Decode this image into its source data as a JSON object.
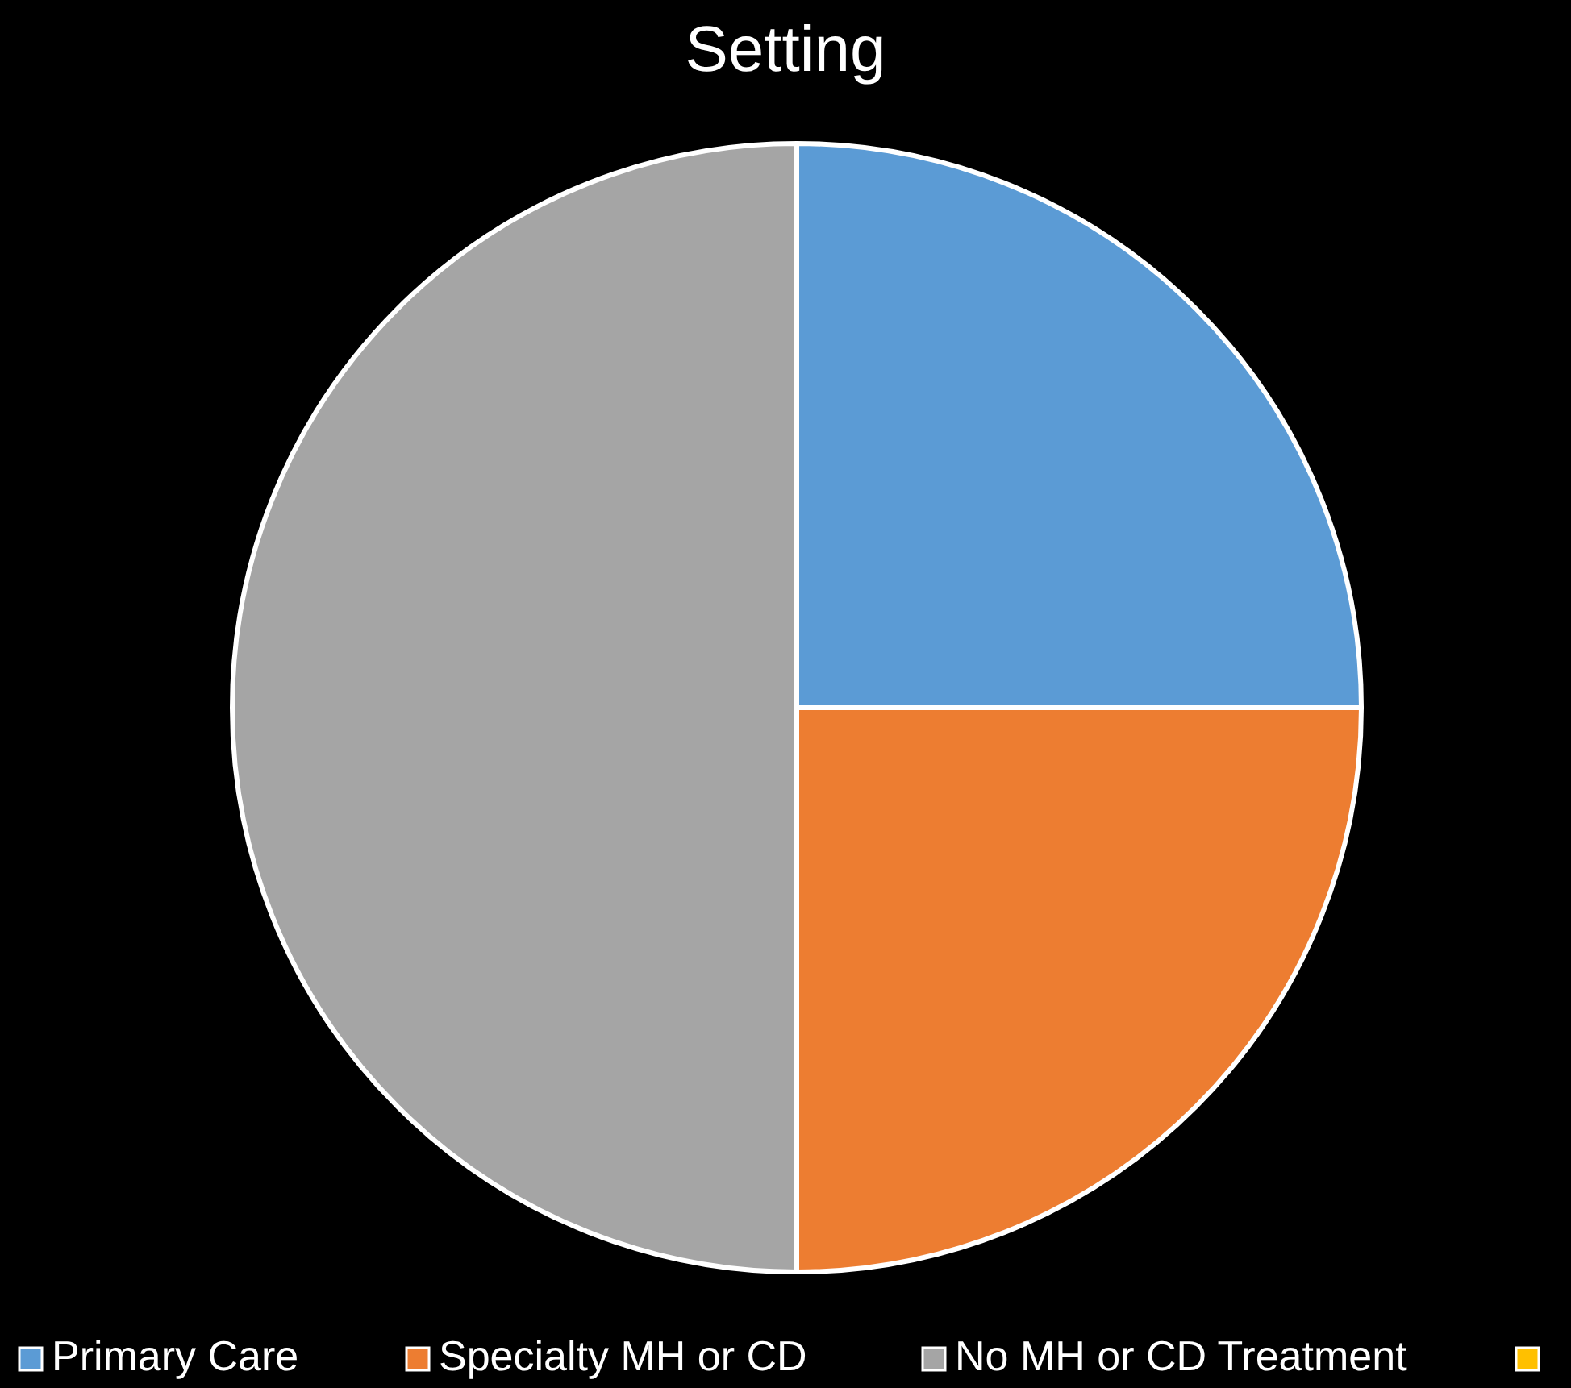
{
  "chart_data": {
    "type": "pie",
    "title": "Setting",
    "categories": [
      "Primary Care",
      "Specialty MH or CD",
      "No MH or CD Treatment",
      null
    ],
    "values": [
      25,
      25,
      50,
      0
    ],
    "colors": [
      "#5b9bd5",
      "#ed7d31",
      "#a5a5a5",
      "#ffc000"
    ],
    "legend": "bottom"
  }
}
